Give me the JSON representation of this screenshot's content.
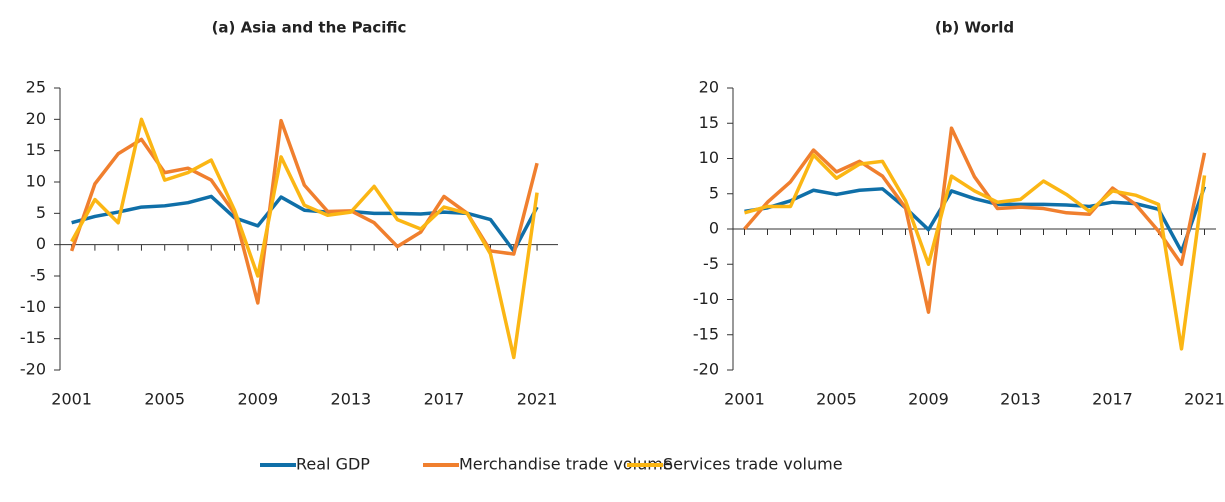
{
  "chart_data": [
    {
      "type": "line",
      "title": "(a) Asia and the Pacific",
      "x": [
        2001,
        2002,
        2003,
        2004,
        2005,
        2006,
        2007,
        2008,
        2009,
        2010,
        2011,
        2012,
        2013,
        2014,
        2015,
        2016,
        2017,
        2018,
        2019,
        2020,
        2021
      ],
      "xlim": [
        2000.5,
        2021.9
      ],
      "xticks": [
        2001,
        2005,
        2009,
        2013,
        2017,
        2021
      ],
      "ylim": [
        -20,
        25
      ],
      "yticks": [
        -20,
        -15,
        -10,
        -5,
        0,
        5,
        10,
        15,
        20,
        25
      ],
      "series": [
        {
          "name": "Real GDP",
          "color": "#0f6fa8",
          "values": [
            3.5,
            4.5,
            5.2,
            6,
            6.2,
            6.7,
            7.7,
            4.3,
            3,
            7.6,
            5.5,
            5.2,
            5.3,
            5,
            5,
            4.9,
            5.2,
            5,
            4,
            -1,
            6
          ]
        },
        {
          "name": "Merchandise trade volume",
          "color": "#f07f2e",
          "values": [
            -1,
            9.7,
            14.5,
            16.8,
            11.5,
            12.2,
            10.3,
            5,
            -9.3,
            19.8,
            9.5,
            5.3,
            5.4,
            3.5,
            -0.3,
            2,
            7.7,
            5,
            -1,
            -1.5,
            13
          ]
        },
        {
          "name": "Services trade volume",
          "color": "#fbb614",
          "values": [
            0.5,
            7.2,
            3.5,
            20,
            10.3,
            11.5,
            13.5,
            5.5,
            -5,
            14,
            6.3,
            4.7,
            5.2,
            9.3,
            4,
            2.5,
            6,
            5,
            -1.5,
            -18,
            8.3
          ]
        }
      ]
    },
    {
      "type": "line",
      "title": "(b) World",
      "x": [
        2001,
        2002,
        2003,
        2004,
        2005,
        2006,
        2007,
        2008,
        2009,
        2010,
        2011,
        2012,
        2013,
        2014,
        2015,
        2016,
        2017,
        2018,
        2019,
        2020,
        2021
      ],
      "xlim": [
        2000.5,
        2021.5
      ],
      "xticks": [
        2001,
        2005,
        2009,
        2013,
        2017,
        2021
      ],
      "ylim": [
        -20,
        20
      ],
      "yticks": [
        -20,
        -15,
        -10,
        -5,
        0,
        5,
        10,
        15,
        20
      ],
      "series": [
        {
          "name": "Real GDP",
          "color": "#0f6fa8",
          "values": [
            2.5,
            3,
            4,
            5.5,
            4.9,
            5.5,
            5.7,
            3,
            -0.1,
            5.4,
            4.3,
            3.5,
            3.5,
            3.5,
            3.4,
            3.2,
            3.8,
            3.6,
            2.8,
            -3.2,
            6
          ]
        },
        {
          "name": "Merchandise trade volume",
          "color": "#f07f2e",
          "values": [
            0,
            3.8,
            6.7,
            11.2,
            8.1,
            9.6,
            7.5,
            3,
            -11.8,
            14.3,
            7.4,
            2.9,
            3.1,
            2.9,
            2.3,
            2.1,
            5.8,
            3.5,
            -0.3,
            -5,
            10.8
          ]
        },
        {
          "name": "Services trade volume",
          "color": "#fbb614",
          "values": [
            2.3,
            3.2,
            3.2,
            10.5,
            7.2,
            9.2,
            9.6,
            4,
            -5,
            7.5,
            5.4,
            3.8,
            4.2,
            6.8,
            4.9,
            2.5,
            5.4,
            4.8,
            3.5,
            -17,
            7.6
          ]
        }
      ]
    }
  ]
}
